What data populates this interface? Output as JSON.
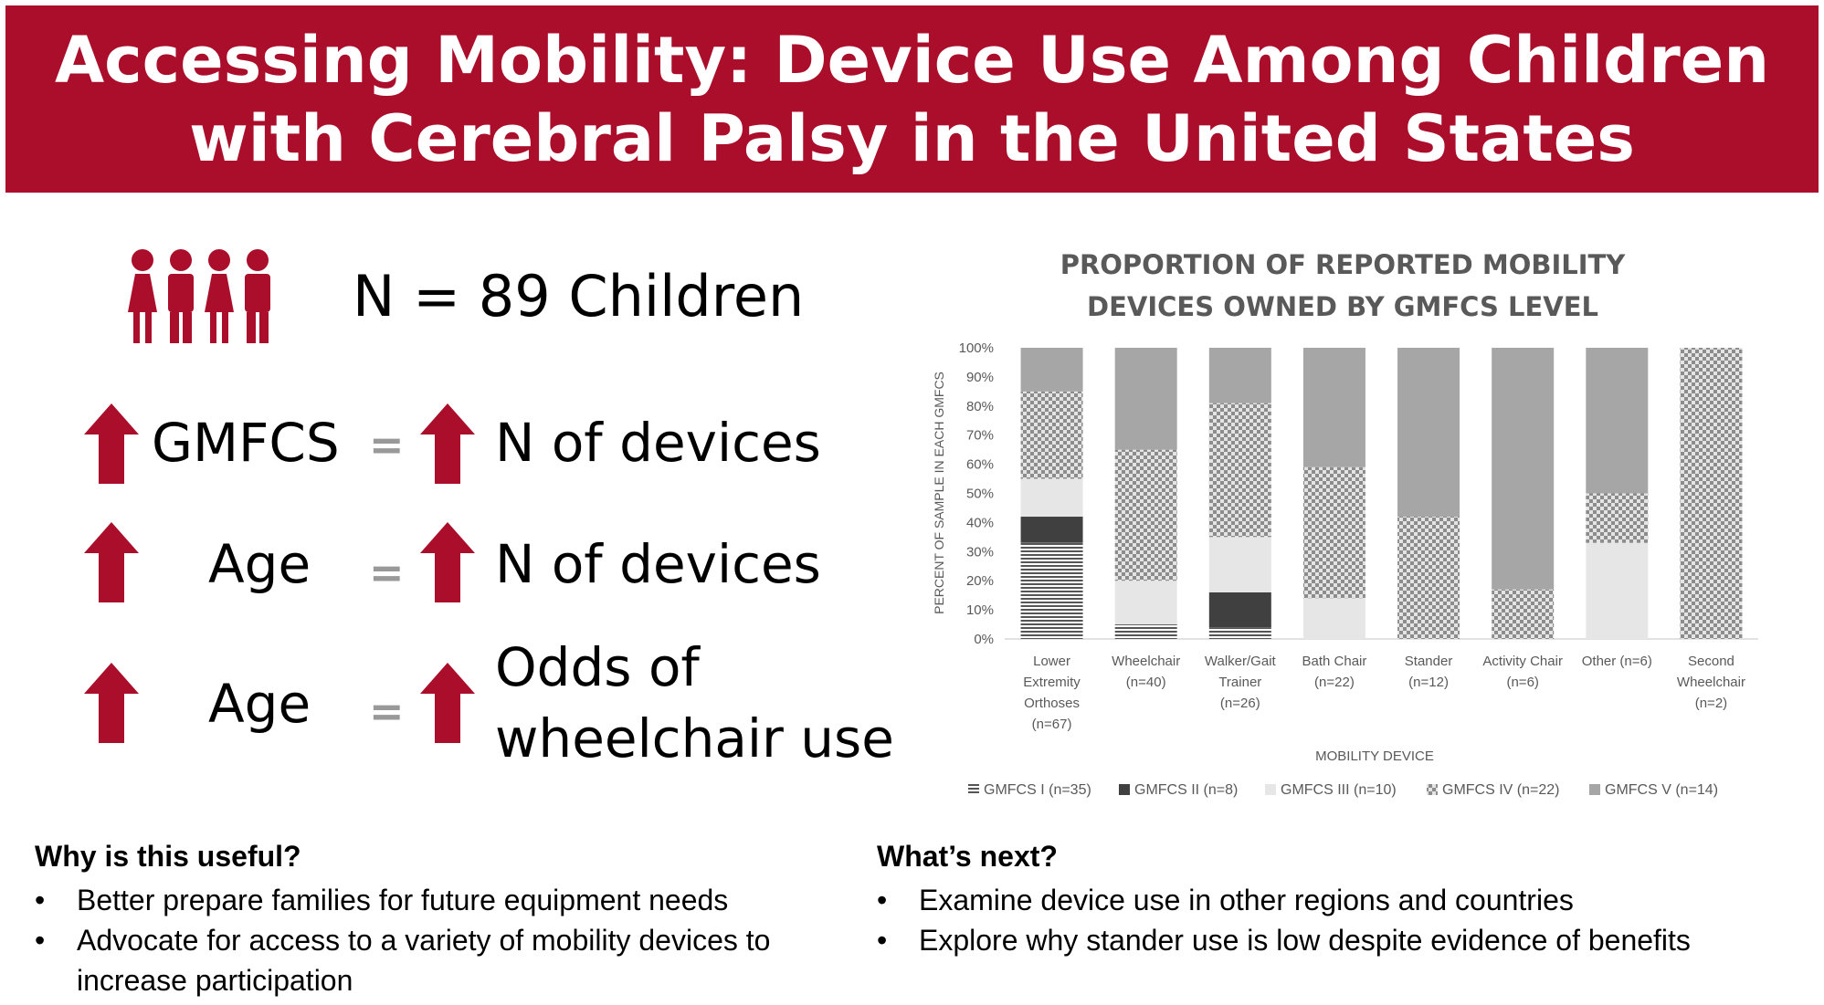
{
  "title": "Accessing Mobility: Device Use Among Children with Cerebral Palsy in the United States",
  "colors": {
    "brand": "#ab0e2b",
    "accent": "#ab0e2b",
    "equals": "#999999"
  },
  "sample": {
    "icon": "children-group-icon",
    "text": "N = 89 Children"
  },
  "findings": [
    {
      "left": "GMFCS",
      "equals": "=",
      "right": "N of devices"
    },
    {
      "left": "Age",
      "equals": "=",
      "right": "N of devices"
    },
    {
      "left": "Age",
      "equals": "=",
      "right_line1": "Odds of",
      "right_line2": "wheelchair use"
    }
  ],
  "why": {
    "heading": "Why is this useful?",
    "items": [
      "Better prepare families for future equipment needs",
      "Advocate for access to a variety of mobility devices to increase participation"
    ]
  },
  "next": {
    "heading": "What’s next?",
    "items": [
      "Examine device use in other regions and countries",
      "Explore why stander use is low despite evidence of benefits"
    ]
  },
  "chart_data": {
    "type": "bar",
    "stacked": true,
    "title_line1": "PROPORTION OF REPORTED MOBILITY",
    "title_line2": "DEVICES OWNED BY GMFCS LEVEL",
    "xlabel": "MOBILITY DEVICE",
    "ylabel": "PERCENT OF SAMPLE IN EACH GMFCS",
    "ylim": [
      0,
      100
    ],
    "yticks": [
      "0%",
      "10%",
      "20%",
      "30%",
      "40%",
      "50%",
      "60%",
      "70%",
      "80%",
      "90%",
      "100%"
    ],
    "grid": false,
    "legend_position": "bottom",
    "categories": [
      [
        "Lower",
        "Extremity",
        "Orthoses",
        "(n=67)"
      ],
      [
        "Wheelchair",
        "(n=40)"
      ],
      [
        "Walker/Gait",
        "Trainer",
        "(n=26)"
      ],
      [
        "Bath Chair",
        "(n=22)"
      ],
      [
        "Stander",
        "(n=12)"
      ],
      [
        "Activity Chair",
        "(n=6)"
      ],
      [
        "Other (n=6)"
      ],
      [
        "Second",
        "Wheelchair",
        "(n=2)"
      ]
    ],
    "series": [
      {
        "name": "GMFCS I (n=35)",
        "fill": "lines",
        "values": [
          33,
          5,
          4,
          0,
          0,
          0,
          0,
          0
        ]
      },
      {
        "name": "GMFCS II (n=8)",
        "fill": "dark",
        "values": [
          9,
          0,
          12,
          0,
          0,
          0,
          0,
          0
        ]
      },
      {
        "name": "GMFCS III (n=10)",
        "fill": "light",
        "values": [
          13,
          15,
          19,
          14,
          0,
          0,
          33,
          0
        ]
      },
      {
        "name": "GMFCS IV (n=22)",
        "fill": "checker",
        "values": [
          30,
          45,
          46,
          45,
          42,
          17,
          17,
          100
        ]
      },
      {
        "name": "GMFCS V (n=14)",
        "fill": "gray",
        "values": [
          15,
          35,
          19,
          41,
          58,
          83,
          50,
          0
        ]
      }
    ]
  }
}
